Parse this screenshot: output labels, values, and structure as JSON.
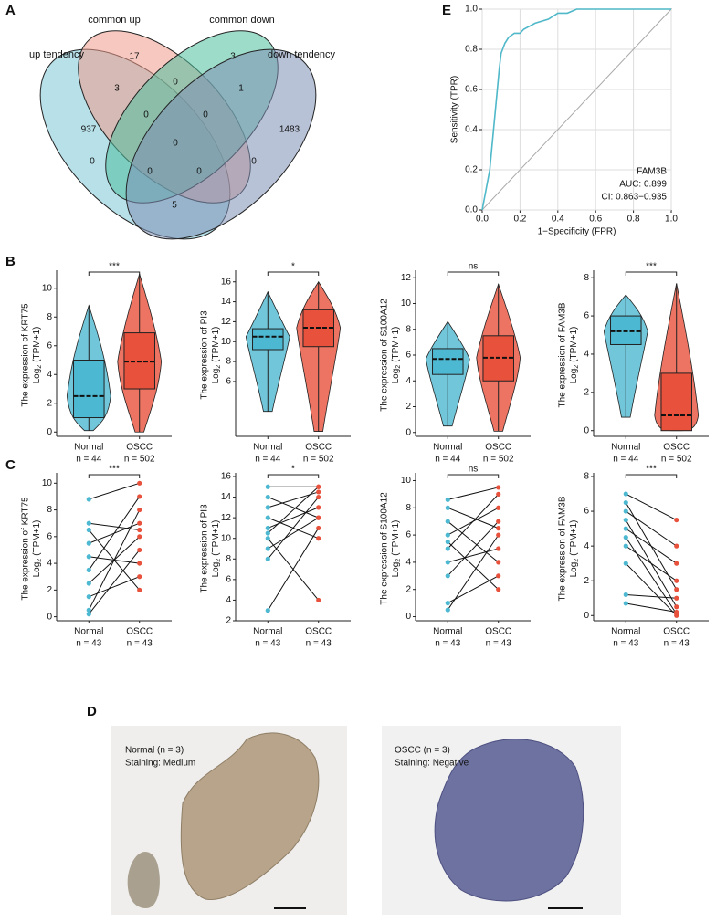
{
  "figure": {
    "A": {
      "label": "A",
      "sets": [
        "common up",
        "common down",
        "up tendency",
        "down tendency"
      ],
      "counts": [
        17,
        3,
        3,
        0,
        1,
        937,
        0,
        0,
        1483,
        0,
        0,
        0,
        0,
        0,
        5
      ]
    },
    "E": {
      "label": "E",
      "type": "roc",
      "name": "FAM3B",
      "auc": "AUC: 0.899",
      "ci": "CI: 0.863−0.935",
      "xlabel": "1−Specificity (FPR)",
      "ylabel": "Sensitivity (TPR)",
      "color": "#4fb8c9",
      "grid": true,
      "xlim": [
        0,
        1
      ],
      "ylim": [
        0,
        1
      ],
      "xticks": [
        {
          "value": 0,
          "label": "0.0"
        },
        {
          "value": 0.2,
          "label": "0.2"
        },
        {
          "value": 0.4,
          "label": "0.4"
        },
        {
          "value": 0.6,
          "label": "0.6"
        },
        {
          "value": 0.8,
          "label": "0.8"
        },
        {
          "value": 1,
          "label": "1.0"
        }
      ],
      "yticks": [
        {
          "value": 0,
          "label": "0.0"
        },
        {
          "value": 0.2,
          "label": "0.2"
        },
        {
          "value": 0.4,
          "label": "0.4"
        },
        {
          "value": 0.6,
          "label": "0.6"
        },
        {
          "value": 0.8,
          "label": "0.8"
        },
        {
          "value": 1,
          "label": "1.0"
        }
      ],
      "x": [
        0,
        0.01,
        0.02,
        0.04,
        0.05,
        0.06,
        0.07,
        0.08,
        0.09,
        0.1,
        0.12,
        0.14,
        0.17,
        0.2,
        0.22,
        0.28,
        0.35,
        0.4,
        0.45,
        0.5,
        1
      ],
      "y": [
        0,
        0.05,
        0.1,
        0.2,
        0.3,
        0.4,
        0.5,
        0.6,
        0.7,
        0.78,
        0.83,
        0.86,
        0.88,
        0.88,
        0.9,
        0.93,
        0.95,
        0.98,
        0.98,
        1,
        1
      ]
    },
    "B": {
      "label": "B",
      "type": "violin",
      "colors": [
        "#4db8d1",
        "#e8513c"
      ],
      "categories": [
        "Normal",
        "OSCC"
      ],
      "n_labels": [
        "n = 44",
        "n = 502"
      ],
      "log": "Log",
      "sub": "2",
      "unit": "(TPM+1)",
      "plots": [
        {
          "ylabel": "The expression of KRT75",
          "sig": "***",
          "ylim": [
            -0.3,
            11
          ],
          "yticks": [
            0,
            2,
            4,
            6,
            8,
            10
          ],
          "boxes": [
            [
              0.1,
              1.0,
              2.5,
              5.0,
              8.8
            ],
            [
              0,
              3,
              4.9,
              6.9,
              11
            ]
          ]
        },
        {
          "ylabel": "The expression of PI3",
          "sig": "*",
          "ylim": [
            0.5,
            16.8
          ],
          "yticks": [
            6,
            8,
            10,
            12,
            14,
            16
          ],
          "boxes": [
            [
              3,
              9.2,
              10.5,
              11.3,
              15
            ],
            [
              1,
              9.5,
              11.4,
              13.2,
              16
            ]
          ]
        },
        {
          "ylabel": "The expression of S100A12",
          "sig": "ns",
          "ylim": [
            -0.3,
            12.3
          ],
          "yticks": [
            0,
            2,
            4,
            6,
            8,
            10,
            12
          ],
          "boxes": [
            [
              0.5,
              4.5,
              5.7,
              6.5,
              8.6
            ],
            [
              0.1,
              4,
              5.8,
              7.5,
              11.5
            ]
          ]
        },
        {
          "ylabel": "The expression of FAM3B",
          "sig": "***",
          "ylim": [
            -0.3,
            8.2
          ],
          "yticks": [
            0,
            2,
            4,
            6,
            8
          ],
          "boxes": [
            [
              0.7,
              4.5,
              5.2,
              6,
              7.1
            ],
            [
              0,
              0,
              0.8,
              3,
              7.7
            ]
          ]
        }
      ]
    },
    "C": {
      "label": "C",
      "type": "paired",
      "colors": [
        "#4db8d1",
        "#e8513c"
      ],
      "categories": [
        "Normal",
        "OSCC"
      ],
      "n_labels": [
        "n = 43",
        "n = 43"
      ],
      "log": "Log",
      "sub": "2",
      "unit": "(TPM+1)",
      "plots": [
        {
          "ylabel": "The expression of KRT75",
          "sig": "***",
          "ylim": [
            -0.3,
            10.5
          ],
          "yticks": [
            0,
            2,
            4,
            6,
            8,
            10
          ],
          "normal": [
            0.2,
            0.5,
            1.5,
            2.5,
            3.5,
            4.5,
            5.5,
            6.5,
            7,
            8.8
          ],
          "oscc": [
            5,
            8,
            3,
            6,
            9,
            4,
            7,
            2,
            6.5,
            10
          ]
        },
        {
          "ylabel": "The expression of PI3",
          "sig": "*",
          "ylim": [
            2,
            16
          ],
          "yticks": [
            2,
            4,
            6,
            8,
            10,
            12,
            14,
            16
          ],
          "normal": [
            3,
            8,
            9,
            10,
            10.5,
            11,
            12,
            13,
            14,
            15
          ],
          "oscc": [
            11,
            14,
            12,
            4,
            15,
            13,
            10,
            14.5,
            12,
            15
          ]
        },
        {
          "ylabel": "The expression of S100A12",
          "sig": "ns",
          "ylim": [
            -0.3,
            10.3
          ],
          "yticks": [
            0,
            2,
            4,
            6,
            8,
            10
          ],
          "normal": [
            0.5,
            1,
            3,
            4,
            5,
            5.5,
            6,
            7,
            8,
            8.6
          ],
          "oscc": [
            6,
            3,
            7,
            5,
            9,
            2,
            8,
            4,
            6.5,
            9.5
          ]
        },
        {
          "ylabel": "The expression of FAM3B",
          "sig": "***",
          "ylim": [
            -0.3,
            8
          ],
          "yticks": [
            0,
            2,
            4,
            6,
            8
          ],
          "normal": [
            0.7,
            1.2,
            3,
            4,
            4.5,
            5,
            5.5,
            6,
            6.5,
            7
          ],
          "oscc": [
            0.2,
            1,
            0,
            2,
            0.1,
            3,
            0.5,
            4,
            1.5,
            5.5
          ]
        }
      ]
    },
    "D": {
      "label": "D",
      "left": [
        "Normal (n = 3)",
        "Staining: Medium"
      ],
      "right": [
        "OSCC (n = 3)",
        "Staining: Negative"
      ]
    }
  }
}
